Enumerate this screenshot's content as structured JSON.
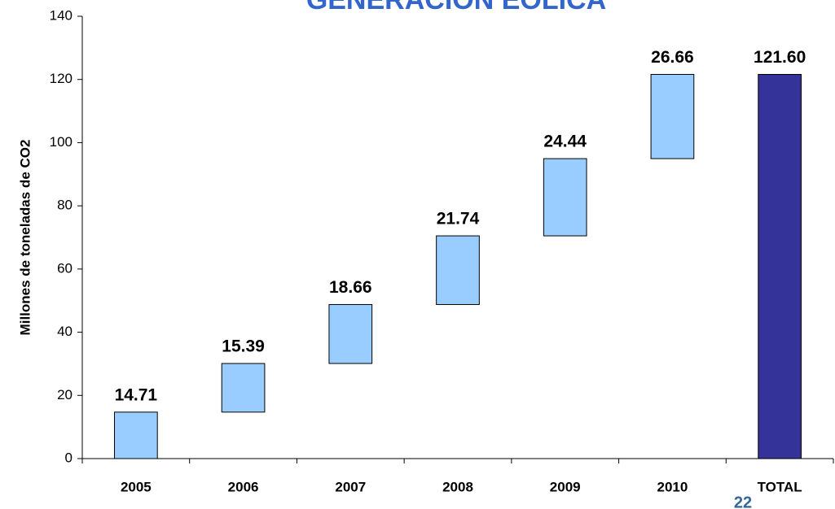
{
  "chart_data": {
    "type": "waterfall",
    "title": "GENERACION EOLICA",
    "y_label": "Millones de toneladas de CO2",
    "categories": [
      "2005",
      "2006",
      "2007",
      "2008",
      "2009",
      "2010",
      "TOTAL"
    ],
    "values": [
      14.71,
      15.39,
      18.66,
      21.74,
      24.44,
      26.66,
      121.6
    ],
    "value_labels": [
      "14.71",
      "15.39",
      "18.66",
      "21.74",
      "24.44",
      "26.66",
      "121.60"
    ],
    "color": "#99ccff",
    "total_color": "#333399",
    "ylim": [
      0,
      140
    ],
    "yticks": [
      0,
      20,
      40,
      60,
      80,
      100,
      120,
      140
    ],
    "grid": false
  },
  "page_number": "22"
}
